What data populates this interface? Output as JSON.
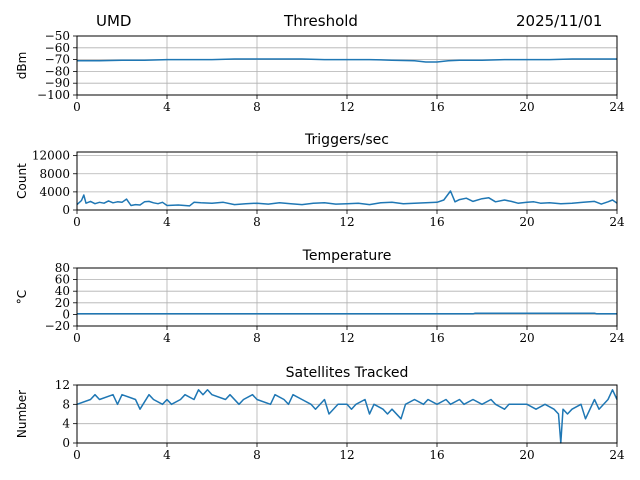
{
  "header": {
    "site": "UMD",
    "title": "Threshold",
    "date": "2025/11/01"
  },
  "style": {
    "line_color": "#1f77b4",
    "grid_color": "#b0b0b0",
    "axis_color": "#000000"
  },
  "chart_data": [
    {
      "id": "threshold",
      "type": "line",
      "title": "",
      "xlabel": "",
      "ylabel": "dBm",
      "xlim": [
        0,
        24
      ],
      "ylim": [
        -100,
        -50
      ],
      "xticks": [
        0,
        4,
        8,
        12,
        16,
        20,
        24
      ],
      "yticks": [
        -100,
        -90,
        -80,
        -70,
        -60,
        -50
      ],
      "grid": true,
      "series": [
        {
          "x": [
            0,
            1,
            2,
            3,
            4,
            5,
            6,
            7,
            8,
            9,
            10,
            11,
            12,
            13,
            14,
            15,
            15.5,
            16,
            16.5,
            17,
            18,
            19,
            20,
            21,
            22,
            23,
            24
          ],
          "y": [
            -71,
            -71,
            -70.5,
            -70.5,
            -70,
            -70,
            -70,
            -69.5,
            -69.5,
            -69.5,
            -69.5,
            -70,
            -70,
            -70,
            -70.5,
            -71,
            -72,
            -72,
            -71,
            -70.5,
            -70.5,
            -70,
            -70,
            -70,
            -69.5,
            -69.5,
            -69.5
          ]
        }
      ]
    },
    {
      "id": "triggers",
      "type": "line",
      "title": "Triggers/sec",
      "xlabel": "",
      "ylabel": "Count",
      "xlim": [
        0,
        24
      ],
      "ylim": [
        0,
        12800
      ],
      "xticks": [
        0,
        4,
        8,
        12,
        16,
        20,
        24
      ],
      "yticks": [
        0,
        4000,
        8000,
        12000
      ],
      "grid": true,
      "series": [
        {
          "x": [
            0,
            0.2,
            0.3,
            0.4,
            0.6,
            0.8,
            1.0,
            1.2,
            1.4,
            1.6,
            1.8,
            2.0,
            2.2,
            2.4,
            2.6,
            2.8,
            3.0,
            3.2,
            3.4,
            3.6,
            3.8,
            4.0,
            4.5,
            5.0,
            5.2,
            5.5,
            6.0,
            6.5,
            7.0,
            7.5,
            8.0,
            8.5,
            9.0,
            9.5,
            10.0,
            10.5,
            11.0,
            11.5,
            12.0,
            12.5,
            13.0,
            13.5,
            14.0,
            14.5,
            15.0,
            15.5,
            16.0,
            16.3,
            16.6,
            16.8,
            17.0,
            17.3,
            17.6,
            18.0,
            18.3,
            18.6,
            19.0,
            19.3,
            19.6,
            20.0,
            20.3,
            20.6,
            21.0,
            21.5,
            22.0,
            22.5,
            23.0,
            23.3,
            23.6,
            23.8,
            24.0
          ],
          "y": [
            1200,
            2100,
            3300,
            1500,
            1900,
            1400,
            1700,
            1500,
            2000,
            1600,
            1800,
            1700,
            2400,
            1000,
            1200,
            1100,
            1800,
            1900,
            1600,
            1400,
            1700,
            1000,
            1100,
            900,
            1700,
            1600,
            1500,
            1700,
            1200,
            1400,
            1500,
            1300,
            1600,
            1400,
            1200,
            1500,
            1600,
            1300,
            1400,
            1500,
            1200,
            1600,
            1700,
            1400,
            1500,
            1600,
            1700,
            2200,
            4200,
            1800,
            2300,
            2600,
            1900,
            2500,
            2700,
            1800,
            2200,
            1900,
            1500,
            1700,
            1800,
            1500,
            1600,
            1400,
            1500,
            1700,
            1900,
            1300,
            1800,
            2200,
            1500
          ]
        }
      ]
    },
    {
      "id": "temperature",
      "type": "line",
      "title": "Temperature",
      "xlabel": "",
      "ylabel": "°C",
      "xlim": [
        0,
        24
      ],
      "ylim": [
        -20,
        80
      ],
      "xticks": [
        0,
        4,
        8,
        12,
        16,
        20,
        24
      ],
      "yticks": [
        -20,
        0,
        20,
        40,
        60,
        80
      ],
      "grid": true,
      "series": [
        {
          "x": [
            0,
            4,
            8,
            12,
            16,
            17.6,
            17.7,
            23,
            23.1,
            24
          ],
          "y": [
            1,
            1,
            1,
            1,
            1,
            1,
            2,
            2,
            1,
            1
          ]
        }
      ]
    },
    {
      "id": "satellites",
      "type": "line",
      "title": "Satellites Tracked",
      "xlabel": "",
      "ylabel": "Number",
      "xlim": [
        0,
        24
      ],
      "ylim": [
        0,
        12
      ],
      "xticks": [
        0,
        4,
        8,
        12,
        16,
        20,
        24
      ],
      "yticks": [
        0,
        4,
        8,
        12
      ],
      "grid": true,
      "series": [
        {
          "x": [
            0,
            0.6,
            0.8,
            1.0,
            1.6,
            1.8,
            2.0,
            2.6,
            2.8,
            3.2,
            3.4,
            3.8,
            4.0,
            4.2,
            4.6,
            4.8,
            5.2,
            5.4,
            5.6,
            5.8,
            6.0,
            6.6,
            6.8,
            7.2,
            7.4,
            7.8,
            8.0,
            8.6,
            8.8,
            9.2,
            9.4,
            9.6,
            10.0,
            10.4,
            10.6,
            11.0,
            11.2,
            11.6,
            12.0,
            12.2,
            12.4,
            12.8,
            13.0,
            13.2,
            13.6,
            13.8,
            14.0,
            14.4,
            14.6,
            15.0,
            15.4,
            15.6,
            16.0,
            16.4,
            16.6,
            17.0,
            17.2,
            17.6,
            18.0,
            18.4,
            18.6,
            19.0,
            19.2,
            19.6,
            20.0,
            20.4,
            20.8,
            21.2,
            21.4,
            21.5,
            21.6,
            21.8,
            22.0,
            22.4,
            22.6,
            23.0,
            23.2,
            23.6,
            23.8,
            24.0
          ],
          "y": [
            8,
            9,
            10,
            9,
            10,
            8,
            10,
            9,
            7,
            10,
            9,
            8,
            9,
            8,
            9,
            10,
            9,
            11,
            10,
            11,
            10,
            9,
            10,
            8,
            9,
            10,
            9,
            8,
            10,
            9,
            8,
            10,
            9,
            8,
            7,
            9,
            6,
            8,
            8,
            7,
            8,
            9,
            6,
            8,
            7,
            6,
            7,
            5,
            8,
            9,
            8,
            9,
            8,
            9,
            8,
            9,
            8,
            9,
            8,
            9,
            8,
            7,
            8,
            8,
            8,
            7,
            8,
            7,
            6,
            0,
            7,
            6,
            7,
            8,
            5,
            9,
            7,
            9,
            11,
            9
          ]
        }
      ]
    }
  ]
}
